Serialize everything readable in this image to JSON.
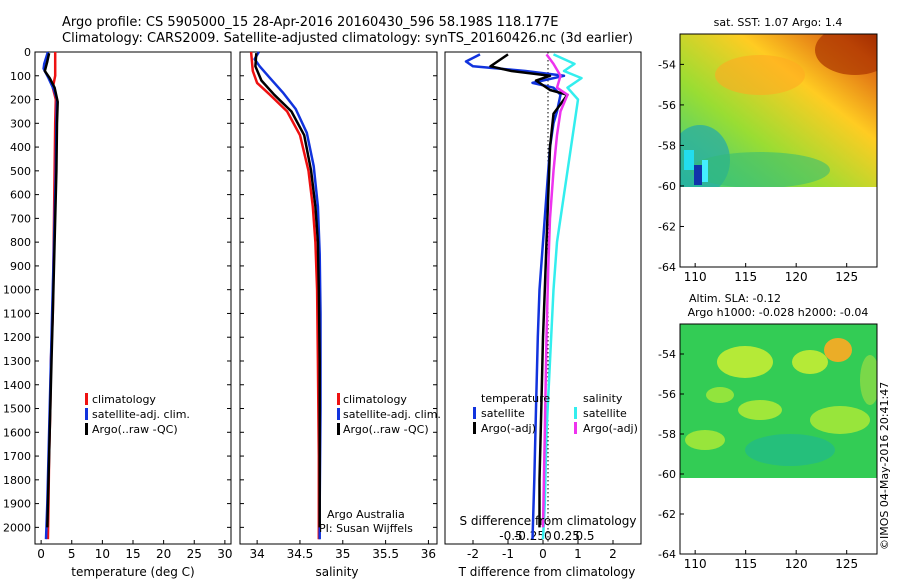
{
  "header": {
    "line1": "Argo profile: CS 5905000_15 28-Apr-2016 20160430_596 58.198S 118.177E",
    "line2": "Climatology: CARS2009. Satellite-adjusted climatology: synTS_20160426.nc (3d earlier)"
  },
  "colors": {
    "climatology": "#ee1111",
    "satellite": "#1133dd",
    "argo": "#000000",
    "satellite_s": "#33eeee",
    "argo_s": "#ee33ee"
  },
  "chart_data": [
    {
      "type": "line",
      "panel": "temperature",
      "xlabel": "temperature (deg C)",
      "ylabel": "",
      "xlim": [
        -1,
        31
      ],
      "ylim": [
        2070,
        0
      ],
      "xticks": [
        "0",
        "5",
        "10",
        "15",
        "20",
        "25",
        "30"
      ],
      "xtick_values": [
        0,
        5,
        10,
        15,
        20,
        25,
        30
      ],
      "yticks": [
        "0",
        "100",
        "200",
        "300",
        "400",
        "500",
        "600",
        "700",
        "800",
        "900",
        "1000",
        "1100",
        "1200",
        "1300",
        "1400",
        "1500",
        "1600",
        "1700",
        "1800",
        "1900",
        "2000"
      ],
      "ytick_values": [
        0,
        100,
        200,
        300,
        400,
        500,
        600,
        700,
        800,
        900,
        1000,
        1100,
        1200,
        1300,
        1400,
        1500,
        1600,
        1700,
        1800,
        1900,
        2000
      ],
      "legend": [
        "climatology",
        "satellite-adj. clim.",
        "Argo(..raw -QC)"
      ],
      "series": [
        {
          "name": "climatology",
          "color": "#ee1111",
          "points": [
            [
              2.3,
              0
            ],
            [
              2.3,
              100
            ],
            [
              1.9,
              150
            ],
            [
              2.4,
              200
            ],
            [
              2.3,
              300
            ],
            [
              2.2,
              500
            ],
            [
              2.1,
              700
            ],
            [
              2.0,
              900
            ],
            [
              1.9,
              1100
            ],
            [
              1.6,
              1300
            ],
            [
              1.5,
              1500
            ],
            [
              1.3,
              1700
            ],
            [
              1.2,
              1900
            ],
            [
              1.1,
              2050
            ]
          ]
        },
        {
          "name": "satellite-adj. clim.",
          "color": "#1133dd",
          "points": [
            [
              1.1,
              0
            ],
            [
              0.5,
              50
            ],
            [
              0.4,
              70
            ],
            [
              1.2,
              110
            ],
            [
              2.1,
              160
            ],
            [
              2.6,
              200
            ],
            [
              2.5,
              300
            ],
            [
              2.4,
              500
            ],
            [
              2.2,
              700
            ],
            [
              2.0,
              900
            ],
            [
              1.8,
              1100
            ],
            [
              1.6,
              1300
            ],
            [
              1.4,
              1500
            ],
            [
              1.2,
              1700
            ],
            [
              1.0,
              1900
            ],
            [
              0.8,
              2050
            ]
          ]
        },
        {
          "name": "Argo(..raw -QC)",
          "color": "#000000",
          "points": [
            [
              1.3,
              5
            ],
            [
              1.0,
              40
            ],
            [
              0.6,
              80
            ],
            [
              1.4,
              110
            ],
            [
              2.2,
              150
            ],
            [
              2.7,
              210
            ],
            [
              2.6,
              300
            ],
            [
              2.5,
              500
            ],
            [
              2.3,
              700
            ],
            [
              2.1,
              900
            ],
            [
              1.9,
              1100
            ],
            [
              1.7,
              1300
            ],
            [
              1.5,
              1500
            ],
            [
              1.3,
              1700
            ],
            [
              1.1,
              1900
            ],
            [
              1.0,
              2000
            ]
          ]
        }
      ]
    },
    {
      "type": "line",
      "panel": "salinity",
      "xlabel": "salinity",
      "xlim": [
        33.8,
        36.1
      ],
      "ylim": [
        2070,
        0
      ],
      "xticks": [
        "34",
        "34.5",
        "35",
        "35.5",
        "36"
      ],
      "xtick_values": [
        34,
        34.5,
        35,
        35.5,
        36
      ],
      "legend": [
        "climatology",
        "satellite-adj. clim.",
        "Argo(..raw -QC)"
      ],
      "annotation": [
        "Argo Australia",
        "PI: Susan Wijffels"
      ],
      "series": [
        {
          "name": "climatology",
          "color": "#ee1111",
          "points": [
            [
              33.93,
              0
            ],
            [
              33.95,
              80
            ],
            [
              34.0,
              130
            ],
            [
              34.15,
              180
            ],
            [
              34.35,
              250
            ],
            [
              34.5,
              350
            ],
            [
              34.6,
              500
            ],
            [
              34.65,
              650
            ],
            [
              34.68,
              800
            ],
            [
              34.7,
              1000
            ],
            [
              34.71,
              1300
            ],
            [
              34.72,
              1700
            ],
            [
              34.72,
              2050
            ]
          ]
        },
        {
          "name": "satellite-adj. clim.",
          "color": "#1133dd",
          "points": [
            [
              34.02,
              0
            ],
            [
              33.97,
              30
            ],
            [
              34.03,
              60
            ],
            [
              34.15,
              110
            ],
            [
              34.3,
              170
            ],
            [
              34.45,
              240
            ],
            [
              34.58,
              340
            ],
            [
              34.66,
              480
            ],
            [
              34.71,
              650
            ],
            [
              34.73,
              850
            ],
            [
              34.74,
              1100
            ],
            [
              34.74,
              1500
            ],
            [
              34.73,
              1900
            ],
            [
              34.73,
              2050
            ]
          ]
        },
        {
          "name": "Argo(..raw -QC)",
          "color": "#000000",
          "points": [
            [
              33.99,
              5
            ],
            [
              33.98,
              60
            ],
            [
              34.05,
              120
            ],
            [
              34.2,
              180
            ],
            [
              34.4,
              250
            ],
            [
              34.55,
              350
            ],
            [
              34.63,
              500
            ],
            [
              34.68,
              650
            ],
            [
              34.71,
              800
            ],
            [
              34.72,
              1000
            ],
            [
              34.73,
              1300
            ],
            [
              34.73,
              1700
            ],
            [
              34.73,
              2000
            ]
          ]
        }
      ]
    },
    {
      "type": "line",
      "panel": "difference",
      "xlabel": "T difference from climatology",
      "xlabel_top": "S difference from climatology",
      "xlim": [
        -2.8,
        2.8
      ],
      "ylim": [
        2070,
        0
      ],
      "xticks": [
        "-2",
        "-1",
        "0",
        "1",
        "2"
      ],
      "xtick_values": [
        -2,
        -1,
        0,
        1,
        2
      ],
      "xticks_top": [
        "-0.5",
        "-0.25",
        "0",
        "0.25",
        "0.5"
      ],
      "xticks_top_values": [
        -0.5,
        -0.25,
        0,
        0.25,
        0.5
      ],
      "legend_titles": [
        "temperature",
        "salinity"
      ],
      "legend": [
        "satellite",
        "Argo(-adj)",
        "satellite",
        "Argo(-adj)"
      ],
      "series": [
        {
          "name": "satellite",
          "group": "temperature",
          "color": "#1133dd",
          "points": [
            [
              -1.8,
              10
            ],
            [
              -2.2,
              40
            ],
            [
              -2.0,
              60
            ],
            [
              -0.5,
              80
            ],
            [
              0.6,
              100
            ],
            [
              -0.3,
              130
            ],
            [
              0.3,
              150
            ],
            [
              0.5,
              180
            ],
            [
              0.4,
              250
            ],
            [
              0.3,
              300
            ],
            [
              0.2,
              400
            ],
            [
              0.1,
              600
            ],
            [
              0.0,
              800
            ],
            [
              -0.1,
              1000
            ],
            [
              -0.15,
              1200
            ],
            [
              -0.2,
              1500
            ],
            [
              -0.25,
              1800
            ],
            [
              -0.3,
              2050
            ]
          ]
        },
        {
          "name": "Argo(-adj)",
          "group": "temperature",
          "color": "#000000",
          "points": [
            [
              -1.0,
              10
            ],
            [
              -1.3,
              40
            ],
            [
              -1.5,
              60
            ],
            [
              -0.9,
              80
            ],
            [
              0.2,
              100
            ],
            [
              -0.2,
              120
            ],
            [
              0.2,
              160
            ],
            [
              0.7,
              180
            ],
            [
              0.5,
              220
            ],
            [
              0.3,
              260
            ],
            [
              0.2,
              400
            ],
            [
              0.15,
              600
            ],
            [
              0.1,
              800
            ],
            [
              0.05,
              1000
            ],
            [
              0.0,
              1200
            ],
            [
              -0.05,
              1500
            ],
            [
              -0.1,
              1800
            ],
            [
              -0.1,
              2000
            ]
          ]
        },
        {
          "name": "satellite",
          "group": "salinity",
          "color": "#33eeee",
          "points": [
            [
              0.3,
              10
            ],
            [
              0.9,
              50
            ],
            [
              0.6,
              80
            ],
            [
              1.1,
              110
            ],
            [
              0.7,
              150
            ],
            [
              1.0,
              200
            ],
            [
              0.9,
              300
            ],
            [
              0.8,
              400
            ],
            [
              0.6,
              600
            ],
            [
              0.4,
              800
            ],
            [
              0.3,
              1000
            ],
            [
              0.2,
              1300
            ],
            [
              0.1,
              1600
            ],
            [
              0.05,
              1900
            ],
            [
              0.0,
              2050
            ]
          ]
        },
        {
          "name": "Argo(-adj)",
          "group": "salinity",
          "color": "#ee33ee",
          "points": [
            [
              0.1,
              10
            ],
            [
              0.3,
              50
            ],
            [
              0.5,
              100
            ],
            [
              0.4,
              150
            ],
            [
              0.7,
              180
            ],
            [
              0.5,
              250
            ],
            [
              0.4,
              350
            ],
            [
              0.3,
              500
            ],
            [
              0.2,
              700
            ],
            [
              0.15,
              900
            ],
            [
              0.1,
              1200
            ],
            [
              0.05,
              1600
            ],
            [
              0.0,
              2000
            ]
          ]
        }
      ]
    },
    {
      "type": "heatmap",
      "panel": "sst_map",
      "title": "sat. SST: 1.07 Argo: 1.4",
      "xlim": [
        108.5,
        128
      ],
      "ylim": [
        -64,
        -52.5
      ],
      "xticks": [
        "110",
        "115",
        "120",
        "125"
      ],
      "xtick_values": [
        110,
        115,
        120,
        125
      ],
      "yticks": [
        "-54",
        "-56",
        "-58",
        "-60",
        "-62",
        "-64"
      ],
      "ytick_values": [
        -54,
        -56,
        -58,
        -60,
        -62,
        -64
      ],
      "data_south_limit": -60
    },
    {
      "type": "heatmap",
      "panel": "sla_map",
      "title": "Altim. SLA: -0.12",
      "subtitle": "Argo h1000: -0.028 h2000: -0.04",
      "xlim": [
        108.5,
        128
      ],
      "ylim": [
        -64,
        -52.5
      ],
      "xticks": [
        "110",
        "115",
        "120",
        "125"
      ],
      "xtick_values": [
        110,
        115,
        120,
        125
      ],
      "yticks": [
        "-54",
        "-56",
        "-58",
        "-60",
        "-62",
        "-64"
      ],
      "ytick_values": [
        -54,
        -56,
        -58,
        -60,
        -62,
        -64
      ],
      "data_south_limit": -60
    }
  ],
  "footer": {
    "stamp": "©IMOS 04-May-2016 20:41:47"
  }
}
